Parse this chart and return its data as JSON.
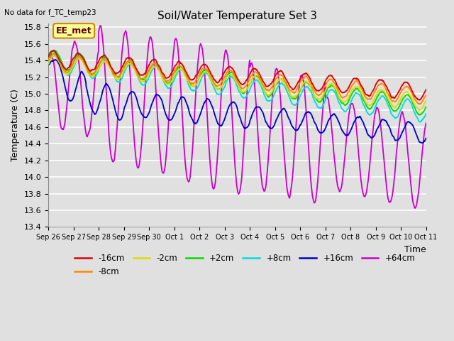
{
  "title": "Soil/Water Temperature Set 3",
  "subtitle": "No data for f_TC_temp23",
  "xlabel": "Time",
  "ylabel": "Temperature (C)",
  "ylim": [
    13.4,
    15.85
  ],
  "yticks": [
    13.4,
    13.6,
    13.8,
    14.0,
    14.2,
    14.4,
    14.6,
    14.8,
    15.0,
    15.2,
    15.4,
    15.6,
    15.8
  ],
  "bg_color": "#e0e0e0",
  "plot_bg_color": "#e0e0e0",
  "grid_color": "white",
  "series_colors": {
    "-16cm": "#dd0000",
    "-8cm": "#ff8800",
    "-2cm": "#dddd00",
    "+2cm": "#00dd00",
    "+8cm": "#00dddd",
    "+16cm": "#0000cc",
    "+64cm": "#cc00cc"
  },
  "legend_label": "EE_met",
  "xtick_labels": [
    "Sep 26",
    "Sep 27",
    "Sep 28",
    "Sep 29",
    "Sep 30",
    "Oct 1",
    "Oct 2",
    "Oct 3",
    "Oct 4",
    "Oct 5",
    "Oct 6",
    "Oct 7",
    "Oct 8",
    "Oct 9",
    "Oct 10",
    "Oct 11"
  ],
  "num_points": 1440
}
